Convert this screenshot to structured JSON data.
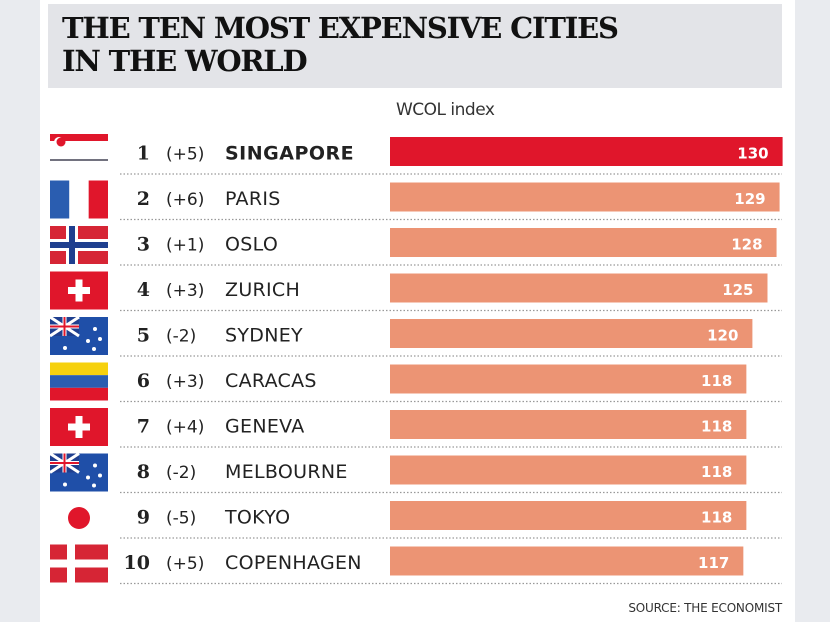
{
  "chart_data": {
    "type": "bar",
    "orientation": "horizontal",
    "title": "THE TEN MOST EXPENSIVE CITIES\nIN THE WORLD",
    "value_label": "WCOL index",
    "source": "SOURCE: THE ECONOMIST",
    "highlight_color": "#e0162b",
    "bar_color": "#ec9474",
    "rows": [
      {
        "rank": "1",
        "change": "(+5)",
        "city": "SINGAPORE",
        "value": 130,
        "flag": "singapore",
        "highlight": true
      },
      {
        "rank": "2",
        "change": "(+6)",
        "city": "PARIS",
        "value": 129,
        "flag": "france"
      },
      {
        "rank": "3",
        "change": "(+1)",
        "city": "OSLO",
        "value": 128,
        "flag": "norway"
      },
      {
        "rank": "4",
        "change": "(+3)",
        "city": "ZURICH",
        "value": 125,
        "flag": "switzerland"
      },
      {
        "rank": "5",
        "change": "(-2)",
        "city": "SYDNEY",
        "value": 120,
        "flag": "australia"
      },
      {
        "rank": "6",
        "change": "(+3)",
        "city": "CARACAS",
        "value": 118,
        "flag": "venezuela"
      },
      {
        "rank": "7",
        "change": "(+4)",
        "city": "GENEVA",
        "value": 118,
        "flag": "switzerland"
      },
      {
        "rank": "8",
        "change": "(-2)",
        "city": "MELBOURNE",
        "value": 118,
        "flag": "australia"
      },
      {
        "rank": "9",
        "change": "(-5)",
        "city": "TOKYO",
        "value": 118,
        "flag": "japan"
      },
      {
        "rank": "10",
        "change": "(+5)",
        "city": "COPENHAGEN",
        "value": 117,
        "flag": "denmark"
      }
    ]
  }
}
